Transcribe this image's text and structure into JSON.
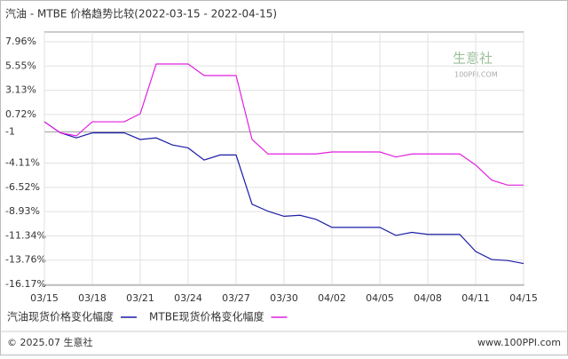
{
  "chart_data": {
    "type": "line",
    "title": "汽油 - MTBE 价格趋势比较(2022-03-15 - 2022-04-15)",
    "categories": [
      "03/15",
      null,
      null,
      "03/18",
      null,
      null,
      "03/21",
      null,
      null,
      "03/24",
      null,
      null,
      "03/27",
      null,
      null,
      "03/30",
      null,
      null,
      "04/02",
      null,
      null,
      "04/05",
      null,
      null,
      "04/08",
      null,
      null,
      "04/11",
      null,
      null,
      "04/15"
    ],
    "series": [
      {
        "name": "汽油现货价格变化幅度",
        "color": "#1c1ca8",
        "values": [
          0,
          -1.1,
          -1.6,
          -1.1,
          -1.1,
          -1.1,
          -1.76,
          -1.6,
          -2.3,
          -2.6,
          -3.8,
          -3.3,
          -3.3,
          -8.2,
          -8.9,
          -9.4,
          -9.3,
          -9.7,
          -10.5,
          -10.5,
          -10.5,
          -10.5,
          -11.3,
          -11.0,
          -11.2,
          -11.2,
          -11.2,
          -12.9,
          -13.7,
          -13.8,
          -14.1
        ]
      },
      {
        "name": "MTBE现货价格变化幅度",
        "color": "#e020e0",
        "values": [
          0,
          -1.1,
          -1.4,
          0,
          0,
          0,
          0.8,
          5.75,
          5.75,
          5.75,
          4.6,
          4.6,
          4.6,
          -1.76,
          -3.2,
          -3.2,
          -3.2,
          -3.2,
          -3.0,
          -3.0,
          -3.0,
          -3.0,
          -3.5,
          -3.2,
          -3.2,
          -3.2,
          -3.2,
          -4.3,
          -5.8,
          -6.3,
          -6.3
        ]
      }
    ],
    "ylim": [
      -16.17,
      7.96
    ],
    "yticks": [
      {
        "value": 7.96,
        "label": "7.96%"
      },
      {
        "value": 5.55,
        "label": "5.55%"
      },
      {
        "value": 3.13,
        "label": "3.13%"
      },
      {
        "value": 0.72,
        "label": "0.72%"
      },
      -1,
      {
        "value": -4.11,
        "label": "-4.11%"
      },
      {
        "value": -6.52,
        "label": "-6.52%"
      },
      {
        "value": -8.93,
        "label": "-8.93%"
      },
      {
        "value": -11.34,
        "label": "-11.34%"
      },
      {
        "value": -13.76,
        "label": "-13.76%"
      },
      {
        "value": -16.17,
        "label": "-16.17%"
      }
    ],
    "grid": true,
    "watermark": [
      "生意社",
      "100PPI.COM"
    ],
    "footer": [
      "© 2025.07 生意社",
      "www.100PPI.com"
    ]
  }
}
